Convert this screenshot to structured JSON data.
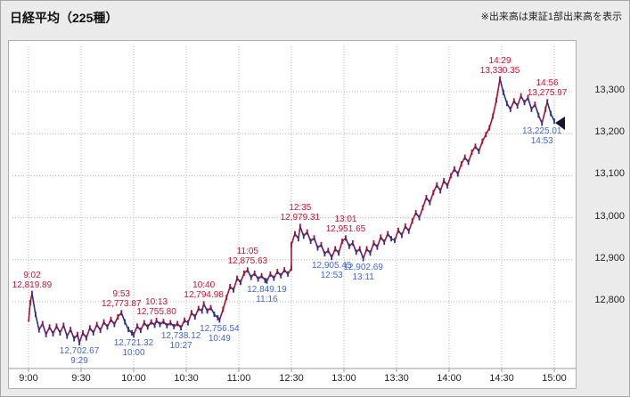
{
  "header": {
    "title": "日経平均（225種）",
    "note": "※出来高は東証1部出来高を表示"
  },
  "colors": {
    "up": "#aa1133",
    "down": "#27338f",
    "annotation_high": "#cc1133",
    "annotation_low": "#4466cc",
    "grid": "#b4b4b4",
    "axis": "#999999",
    "axis_text": "#222222",
    "marker": "#141433",
    "panel_bg": "#ffffff",
    "page_bg": "#ebebeb"
  },
  "chart_data": {
    "type": "line",
    "title": "日経平均（225種）",
    "xlabel": "",
    "ylabel": "",
    "x_ticks": [
      "9:00",
      "9:30",
      "10:00",
      "10:30",
      "11:00",
      "12:30",
      "13:00",
      "13:30",
      "14:00",
      "14:30",
      "15:00"
    ],
    "y_ticks": [
      "13,300",
      "13,200",
      "13,100",
      "13,000",
      "12,900",
      "12,800"
    ],
    "y_tick_values": [
      13300,
      13200,
      13100,
      13000,
      12900,
      12800
    ],
    "ylim": [
      12630,
      13420
    ],
    "sessions": {
      "morning": [
        "9:00",
        "11:30"
      ],
      "afternoon": [
        "12:30",
        "15:00"
      ]
    },
    "grid": true,
    "legend": false,
    "points": [
      [
        "9:00",
        12752
      ],
      [
        "9:01",
        12798
      ],
      [
        "9:02",
        12819.89
      ],
      [
        "9:04",
        12770
      ],
      [
        "9:06",
        12733
      ],
      [
        "9:08",
        12748
      ],
      [
        "9:10",
        12722
      ],
      [
        "9:12",
        12740
      ],
      [
        "9:14",
        12724
      ],
      [
        "9:16",
        12742
      ],
      [
        "9:18",
        12726
      ],
      [
        "9:20",
        12744
      ],
      [
        "9:22",
        12718
      ],
      [
        "9:24",
        12734
      ],
      [
        "9:26",
        12712
      ],
      [
        "9:28",
        12722
      ],
      [
        "9:29",
        12702.67
      ],
      [
        "9:31",
        12726
      ],
      [
        "9:33",
        12714
      ],
      [
        "9:35",
        12738
      ],
      [
        "9:37",
        12726
      ],
      [
        "9:39",
        12746
      ],
      [
        "9:41",
        12732
      ],
      [
        "9:43",
        12752
      ],
      [
        "9:45",
        12740
      ],
      [
        "9:47",
        12758
      ],
      [
        "9:49",
        12746
      ],
      [
        "9:51",
        12764
      ],
      [
        "9:53",
        12773.87
      ],
      [
        "9:55",
        12752
      ],
      [
        "9:57",
        12734
      ],
      [
        "9:59",
        12726
      ],
      [
        "10:00",
        12721.32
      ],
      [
        "10:02",
        12742
      ],
      [
        "10:04",
        12732
      ],
      [
        "10:06",
        12750
      ],
      [
        "10:08",
        12740
      ],
      [
        "10:10",
        12752
      ],
      [
        "10:12",
        12744
      ],
      [
        "10:13",
        12755.8
      ],
      [
        "10:15",
        12746
      ],
      [
        "10:17",
        12753
      ],
      [
        "10:19",
        12743
      ],
      [
        "10:21",
        12750
      ],
      [
        "10:23",
        12741
      ],
      [
        "10:25",
        12748
      ],
      [
        "10:27",
        12738.12
      ],
      [
        "10:29",
        12756
      ],
      [
        "10:31",
        12750
      ],
      [
        "10:33",
        12774
      ],
      [
        "10:35",
        12764
      ],
      [
        "10:37",
        12784
      ],
      [
        "10:39",
        12778
      ],
      [
        "10:40",
        12794.98
      ],
      [
        "10:42",
        12778
      ],
      [
        "10:44",
        12786
      ],
      [
        "10:46",
        12770
      ],
      [
        "10:48",
        12762
      ],
      [
        "10:49",
        12756.54
      ],
      [
        "10:51",
        12782
      ],
      [
        "10:53",
        12810
      ],
      [
        "10:55",
        12836
      ],
      [
        "10:57",
        12828
      ],
      [
        "10:59",
        12856
      ],
      [
        "11:01",
        12846
      ],
      [
        "11:03",
        12868
      ],
      [
        "11:05",
        12875.63
      ],
      [
        "11:07",
        12858
      ],
      [
        "11:09",
        12868
      ],
      [
        "11:11",
        12854
      ],
      [
        "11:13",
        12862
      ],
      [
        "11:15",
        12851
      ],
      [
        "11:16",
        12849.19
      ],
      [
        "11:18",
        12866
      ],
      [
        "11:20",
        12856
      ],
      [
        "11:22",
        12872
      ],
      [
        "11:24",
        12862
      ],
      [
        "11:26",
        12876
      ],
      [
        "11:28",
        12866
      ],
      [
        "11:30",
        12880
      ],
      [
        "12:30",
        12936
      ],
      [
        "12:32",
        12962
      ],
      [
        "12:34",
        12950
      ],
      [
        "12:35",
        12979.31
      ],
      [
        "12:37",
        12956
      ],
      [
        "12:39",
        12966
      ],
      [
        "12:41",
        12944
      ],
      [
        "12:43",
        12952
      ],
      [
        "12:45",
        12928
      ],
      [
        "12:47",
        12936
      ],
      [
        "12:49",
        12914
      ],
      [
        "12:51",
        12922
      ],
      [
        "12:53",
        12905.45
      ],
      [
        "12:55",
        12926
      ],
      [
        "12:57",
        12916
      ],
      [
        "12:59",
        12944
      ],
      [
        "13:01",
        12951.65
      ],
      [
        "13:03",
        12932
      ],
      [
        "13:05",
        12940
      ],
      [
        "13:07",
        12918
      ],
      [
        "13:09",
        12926
      ],
      [
        "13:11",
        12902.69
      ],
      [
        "13:13",
        12926
      ],
      [
        "13:15",
        12916
      ],
      [
        "13:17",
        12940
      ],
      [
        "13:19",
        12930
      ],
      [
        "13:21",
        12954
      ],
      [
        "13:23",
        12942
      ],
      [
        "13:25",
        12962
      ],
      [
        "13:27",
        12950
      ],
      [
        "13:29",
        12946
      ],
      [
        "13:31",
        12970
      ],
      [
        "13:33",
        12958
      ],
      [
        "13:35",
        12980
      ],
      [
        "13:37",
        12968
      ],
      [
        "13:39",
        12992
      ],
      [
        "13:41",
        13012
      ],
      [
        "13:43",
        13000
      ],
      [
        "13:45",
        13024
      ],
      [
        "13:47",
        13048
      ],
      [
        "13:49",
        13036
      ],
      [
        "13:51",
        13060
      ],
      [
        "13:53",
        13078
      ],
      [
        "13:55",
        13064
      ],
      [
        "13:57",
        13088
      ],
      [
        "13:59",
        13076
      ],
      [
        "14:01",
        13100
      ],
      [
        "14:03",
        13116
      ],
      [
        "14:05",
        13104
      ],
      [
        "14:07",
        13128
      ],
      [
        "14:09",
        13144
      ],
      [
        "14:11",
        13132
      ],
      [
        "14:13",
        13156
      ],
      [
        "14:15",
        13170
      ],
      [
        "14:17",
        13158
      ],
      [
        "14:19",
        13182
      ],
      [
        "14:21",
        13198
      ],
      [
        "14:23",
        13214
      ],
      [
        "14:25",
        13242
      ],
      [
        "14:27",
        13280
      ],
      [
        "14:29",
        13330.35
      ],
      [
        "14:31",
        13298
      ],
      [
        "14:33",
        13272
      ],
      [
        "14:35",
        13258
      ],
      [
        "14:37",
        13278
      ],
      [
        "14:39",
        13266
      ],
      [
        "14:41",
        13290
      ],
      [
        "14:43",
        13274
      ],
      [
        "14:45",
        13286
      ],
      [
        "14:47",
        13258
      ],
      [
        "14:49",
        13270
      ],
      [
        "14:51",
        13244
      ],
      [
        "14:53",
        13225.01
      ],
      [
        "14:55",
        13258
      ],
      [
        "14:56",
        13275.97
      ],
      [
        "14:58",
        13248
      ],
      [
        "15:00",
        13230
      ]
    ],
    "annotations": [
      {
        "time": "9:02",
        "price": 12819.89,
        "price_label": "12,819.89",
        "kind": "high"
      },
      {
        "time": "9:29",
        "price": 12702.67,
        "price_label": "12,702.67",
        "kind": "low"
      },
      {
        "time": "9:53",
        "price": 12773.87,
        "price_label": "12,773.87",
        "kind": "high"
      },
      {
        "time": "10:00",
        "price": 12721.32,
        "price_label": "12,721.32",
        "kind": "low"
      },
      {
        "time": "10:13",
        "price": 12755.8,
        "price_label": "12,755.80",
        "kind": "high"
      },
      {
        "time": "10:27",
        "price": 12738.12,
        "price_label": "12,738.12",
        "kind": "low"
      },
      {
        "time": "10:40",
        "price": 12794.98,
        "price_label": "12,794.98",
        "kind": "high"
      },
      {
        "time": "10:49",
        "price": 12756.54,
        "price_label": "12,756.54",
        "kind": "low"
      },
      {
        "time": "11:05",
        "price": 12875.63,
        "price_label": "12,875.63",
        "kind": "high"
      },
      {
        "time": "11:16",
        "price": 12849.19,
        "price_label": "12,849.19",
        "kind": "low"
      },
      {
        "time": "12:35",
        "price": 12979.31,
        "price_label": "12,979.31",
        "kind": "high"
      },
      {
        "time": "12:53",
        "price": 12905.45,
        "price_label": "12,905.45",
        "kind": "low"
      },
      {
        "time": "13:01",
        "price": 12951.65,
        "price_label": "12,951.65",
        "kind": "high"
      },
      {
        "time": "13:11",
        "price": 12902.69,
        "price_label": "12,902.69",
        "kind": "low"
      },
      {
        "time": "14:29",
        "price": 13330.35,
        "price_label": "13,330.35",
        "kind": "high"
      },
      {
        "time": "14:56",
        "price": 13275.97,
        "price_label": "13,275.97",
        "kind": "high"
      },
      {
        "time": "14:53",
        "price": 13225.01,
        "price_label": "13,225.01",
        "kind": "low"
      }
    ],
    "marker": {
      "time": "15:00",
      "price": 13230,
      "shape": "left-triangle"
    }
  }
}
